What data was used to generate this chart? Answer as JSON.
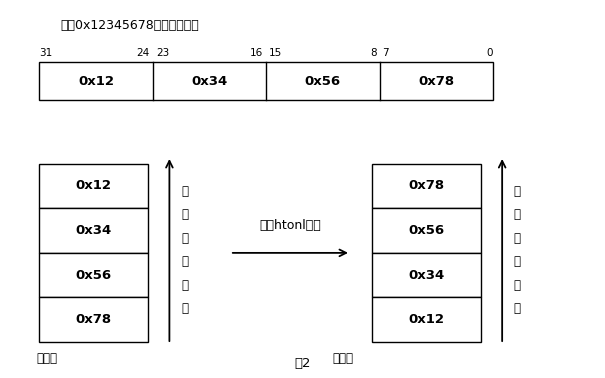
{
  "title": "整形0x12345678的位表示方法",
  "fig_label": "图2",
  "bit_cells": [
    "0x12",
    "0x34",
    "0x56",
    "0x78"
  ],
  "left_stack": [
    "0x12",
    "0x34",
    "0x56",
    "0x78"
  ],
  "right_stack": [
    "0x78",
    "0x56",
    "0x34",
    "0x12"
  ],
  "arrow_label": "使用htonl转换",
  "addr_label_chars": [
    "地",
    "址",
    "增",
    "大",
    "方",
    "向"
  ],
  "low_addr_label": "低地址",
  "background": "#ffffff",
  "box_edge": "#000000",
  "text_color": "#000000",
  "bit_label_pairs": [
    [
      "31",
      0.07
    ],
    [
      "24",
      0.245
    ],
    [
      "23",
      0.275
    ],
    [
      "16",
      0.43
    ],
    [
      "15",
      0.455
    ],
    [
      "8",
      0.618
    ],
    [
      "7",
      0.638
    ],
    [
      "0",
      0.8
    ]
  ]
}
